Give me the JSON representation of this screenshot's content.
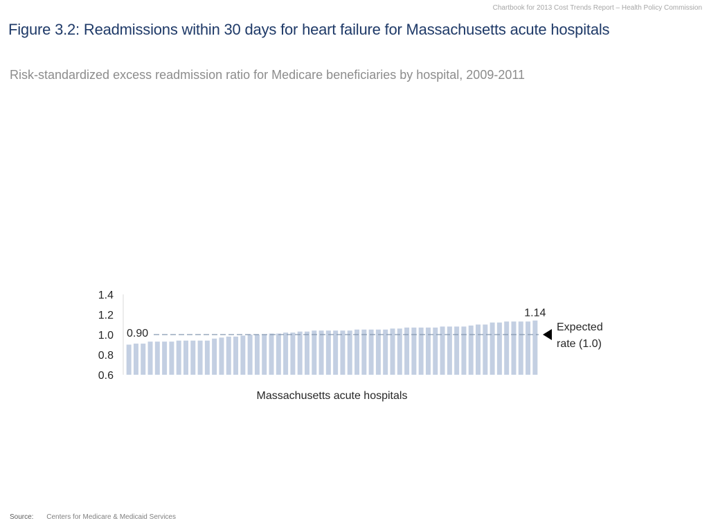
{
  "header": {
    "note": "Chartbook for 2013 Cost Trends Report – Health Policy Commission"
  },
  "title": "Figure 3.2: Readmissions within 30 days for heart failure for Massachusetts acute hospitals",
  "subtitle": "Risk-standardized excess readmission ratio for Medicare beneficiaries by hospital, 2009-2011",
  "source": {
    "label": "Source:",
    "text": "Centers for Medicare & Medicaid Services"
  },
  "colors": {
    "bar": "#c3cfe2",
    "reference_line": "#8496b0",
    "title": "#1f3a68"
  },
  "chart_data": {
    "type": "bar",
    "title": "",
    "xlabel": "Massachusetts acute hospitals",
    "ylabel": "",
    "ylim": [
      0.6,
      1.4
    ],
    "yticks": [
      "0.6",
      "0.8",
      "1.0",
      "1.2",
      "1.4"
    ],
    "grid": false,
    "values": [
      0.9,
      0.91,
      0.91,
      0.93,
      0.93,
      0.93,
      0.93,
      0.94,
      0.94,
      0.94,
      0.94,
      0.94,
      0.96,
      0.97,
      0.98,
      0.98,
      0.99,
      1.0,
      1.0,
      1.0,
      1.01,
      1.01,
      1.02,
      1.02,
      1.03,
      1.03,
      1.04,
      1.04,
      1.04,
      1.04,
      1.04,
      1.04,
      1.05,
      1.05,
      1.05,
      1.05,
      1.05,
      1.06,
      1.06,
      1.07,
      1.07,
      1.07,
      1.07,
      1.07,
      1.08,
      1.08,
      1.08,
      1.08,
      1.09,
      1.1,
      1.1,
      1.12,
      1.12,
      1.13,
      1.13,
      1.13,
      1.13,
      1.14
    ],
    "reference_line": {
      "value": 1.0,
      "label_line1": "Expected",
      "label_line2": "rate (1.0)"
    },
    "annotations": {
      "min_label": "0.90",
      "max_label": "1.14"
    }
  }
}
